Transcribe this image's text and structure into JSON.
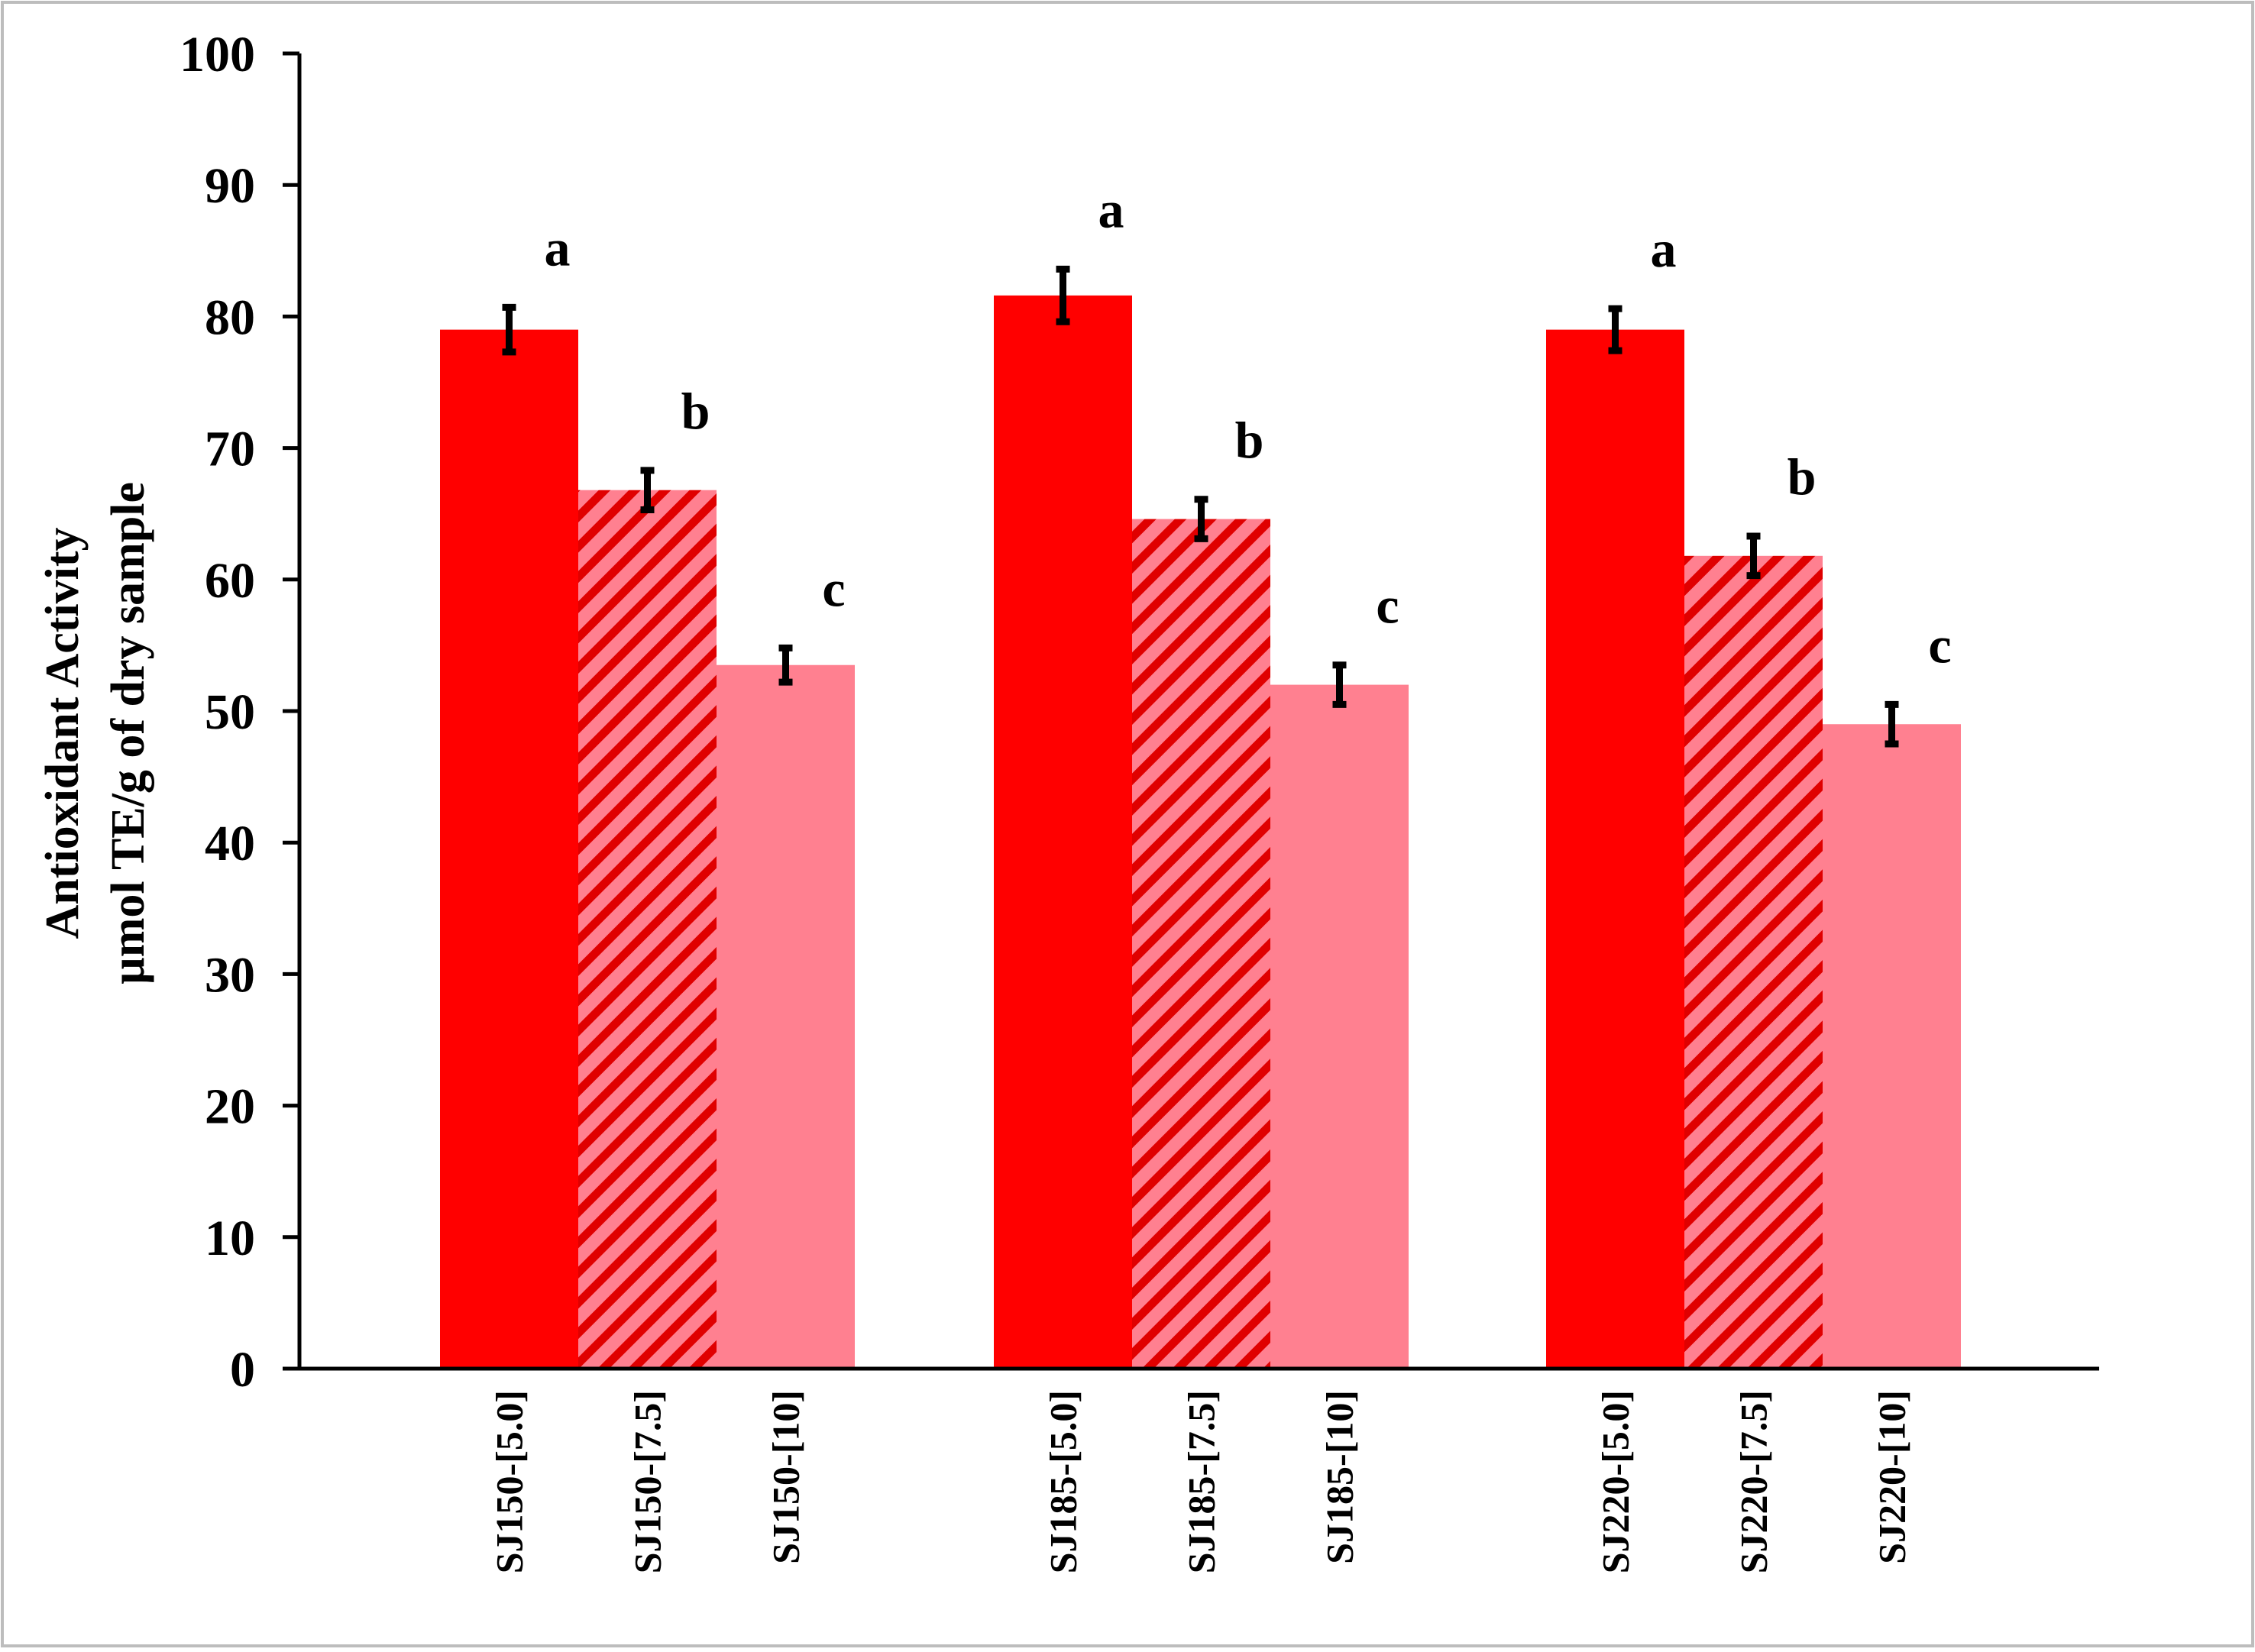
{
  "chart_data": {
    "type": "bar",
    "title": "",
    "ylabel_line1": "Antioxidant Activity",
    "ylabel_line2": "µmol TE/g of dry sample",
    "xlabel": "",
    "ylim": [
      0,
      100
    ],
    "yticks": [
      "0",
      "10",
      "20",
      "30",
      "40",
      "50",
      "60",
      "70",
      "80",
      "90",
      "100"
    ],
    "groups": [
      {
        "name": "SJ150",
        "bars": [
          {
            "label": "SJ150-[5.0]",
            "value": 79.0,
            "error": 1.7,
            "sig": "a",
            "style": "solid"
          },
          {
            "label": "SJ150-[7.5]",
            "value": 66.8,
            "error": 1.5,
            "sig": "b",
            "style": "hatched"
          },
          {
            "label": "SJ150-[10]",
            "value": 53.5,
            "error": 1.3,
            "sig": "c",
            "style": "light"
          }
        ]
      },
      {
        "name": "SJ185",
        "bars": [
          {
            "label": "SJ185-[5.0]",
            "value": 81.6,
            "error": 2.0,
            "sig": "a",
            "style": "solid"
          },
          {
            "label": "SJ185-[7.5]",
            "value": 64.6,
            "error": 1.5,
            "sig": "b",
            "style": "hatched"
          },
          {
            "label": "SJ185-[10]",
            "value": 52.0,
            "error": 1.5,
            "sig": "c",
            "style": "light"
          }
        ]
      },
      {
        "name": "SJ220",
        "bars": [
          {
            "label": "SJ220-[5.0]",
            "value": 79.0,
            "error": 1.6,
            "sig": "a",
            "style": "solid"
          },
          {
            "label": "SJ220-[7.5]",
            "value": 61.8,
            "error": 1.5,
            "sig": "b",
            "style": "hatched"
          },
          {
            "label": "SJ220-[10]",
            "value": 49.0,
            "error": 1.5,
            "sig": "c",
            "style": "light"
          }
        ]
      }
    ],
    "colors": {
      "solid": "#ff0000",
      "hatched_bg": "#ff8090",
      "hatched_stripe": "#e00000",
      "light": "#ff8090",
      "axis": "#000000",
      "error_bar": "#000000",
      "border": "#bdbdbd"
    },
    "grid": false,
    "legend": "none"
  }
}
